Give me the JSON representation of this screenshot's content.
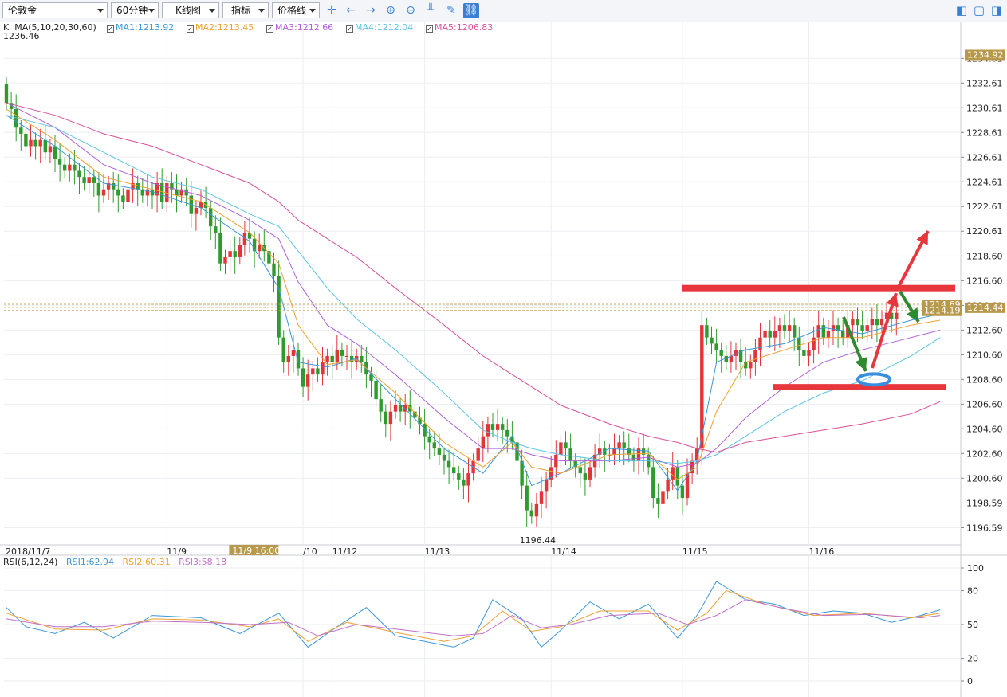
{
  "toolbar": {
    "symbol": "伦敦金",
    "period": "60分钟",
    "chart_type": "K线图",
    "indicator": "指标",
    "price_line": "价格线"
  },
  "main_legend": {
    "label": "K",
    "ma_params": "MA(5,10,20,30,60)",
    "items": [
      {
        "text": "MA1:1213.92",
        "color": "#3c97d8"
      },
      {
        "text": "MA2:1213.45",
        "color": "#f0a030"
      },
      {
        "text": "MA3:1212.66",
        "color": "#b060d8"
      },
      {
        "text": "MA4:1212.04",
        "color": "#5cc4e4"
      },
      {
        "text": "MA5:1206.83",
        "color": "#d8509c"
      }
    ],
    "high_label": "1236.46"
  },
  "rsi_legend": {
    "params": "RSI(6,12,24)",
    "items": [
      {
        "text": "RSI1:62.94",
        "color": "#3c97d8"
      },
      {
        "text": "RSI2:60.31",
        "color": "#f0a030"
      },
      {
        "text": "RSI3:58.18",
        "color": "#c070c8"
      }
    ]
  },
  "chart_data": {
    "type": "candlestick",
    "y_ticks": [
      "1234.61",
      "1232.61",
      "1230.61",
      "1228.61",
      "1226.61",
      "1224.61",
      "1222.61",
      "1220.61",
      "1218.60",
      "1216.60",
      "1214.60",
      "1212.60",
      "1210.60",
      "1208.60",
      "1206.60",
      "1204.60",
      "1202.60",
      "1200.60",
      "1198.59",
      "1196.59"
    ],
    "ylim": [
      1195.2,
      1236.5
    ],
    "x_labels": [
      {
        "text": "2018/11/7",
        "bar": 0
      },
      {
        "text": "11/9",
        "bar": 33
      },
      {
        "text": "/10",
        "bar": 61
      },
      {
        "text": "11/12",
        "bar": 67
      },
      {
        "text": "11/13",
        "bar": 86
      },
      {
        "text": "11/14",
        "bar": 112
      },
      {
        "text": "11/15",
        "bar": 139
      },
      {
        "text": "11/16",
        "bar": 165
      }
    ],
    "cursor_label": {
      "text": "11/9 16:00",
      "bar": 54
    },
    "price_tags": [
      {
        "text": "1234.92",
        "value": 1234.92
      },
      {
        "text": "1214.69",
        "value": 1214.69
      },
      {
        "text": "1214.44",
        "value": 1214.44
      },
      {
        "text": "1214.19",
        "value": 1214.19
      }
    ],
    "low_label": {
      "text": "1196.44",
      "value": 1196.44,
      "bar": 106
    },
    "closes": [
      1231,
      1230.5,
      1229,
      1228.5,
      1227.5,
      1228,
      1227.5,
      1228,
      1227,
      1227.5,
      1226.5,
      1226,
      1225.5,
      1226,
      1225.5,
      1225,
      1224.5,
      1225,
      1224.5,
      1223.5,
      1224,
      1224.5,
      1224,
      1223.5,
      1223,
      1224,
      1224.5,
      1224,
      1223.5,
      1224,
      1223.5,
      1224.5,
      1223,
      1224.5,
      1224,
      1223.5,
      1224,
      1223.5,
      1222,
      1222.5,
      1223,
      1222.5,
      1221,
      1220.5,
      1218,
      1218.5,
      1219,
      1218.5,
      1219.5,
      1220.5,
      1220,
      1219,
      1219.5,
      1219,
      1218,
      1217,
      1212,
      1210,
      1210.5,
      1211,
      1209.5,
      1208,
      1209,
      1209.5,
      1209,
      1210,
      1210.5,
      1210,
      1211,
      1210.5,
      1210.5,
      1210,
      1210.5,
      1210,
      1209,
      1208.5,
      1207,
      1206,
      1205,
      1206,
      1206.5,
      1206,
      1206.5,
      1206,
      1205.5,
      1205,
      1204,
      1203.5,
      1203,
      1202.5,
      1202,
      1201.5,
      1201,
      1200.5,
      1200,
      1201,
      1202,
      1203,
      1204,
      1205,
      1204.5,
      1205,
      1204.5,
      1204,
      1203.5,
      1202,
      1200,
      1198,
      1197.5,
      1198.5,
      1199.5,
      1200.5,
      1201.5,
      1202.5,
      1203.5,
      1203,
      1202,
      1201.5,
      1201,
      1200.5,
      1201.5,
      1202.5,
      1203,
      1202.5,
      1202.5,
      1203,
      1203.5,
      1203,
      1202.5,
      1202,
      1203,
      1202.5,
      1201.5,
      1199,
      1198.5,
      1199.5,
      1200.5,
      1201.5,
      1200,
      1199,
      1201,
      1202,
      1203,
      1213,
      1212,
      1211.5,
      1211,
      1210.5,
      1210,
      1210.5,
      1211,
      1210,
      1209.5,
      1210,
      1211,
      1212,
      1212.5,
      1212,
      1212.5,
      1213,
      1212.5,
      1213,
      1212,
      1211,
      1210.5,
      1211,
      1212,
      1213,
      1212,
      1212.5,
      1213,
      1212.5,
      1212,
      1213,
      1213.5,
      1213,
      1212.5,
      1213,
      1213.5,
      1213,
      1213.5,
      1214,
      1213.5,
      1214
    ],
    "ma": [
      {
        "name": "MA1",
        "color": "#3c97d8",
        "points": [
          [
            0,
            1230
          ],
          [
            10,
            1227.5
          ],
          [
            20,
            1224.5
          ],
          [
            30,
            1223.8
          ],
          [
            40,
            1222.5
          ],
          [
            50,
            1219.8
          ],
          [
            56,
            1216
          ],
          [
            60,
            1210
          ],
          [
            66,
            1209.6
          ],
          [
            72,
            1210.3
          ],
          [
            80,
            1207
          ],
          [
            90,
            1203
          ],
          [
            98,
            1201
          ],
          [
            104,
            1204
          ],
          [
            108,
            1200
          ],
          [
            114,
            1201
          ],
          [
            124,
            1203
          ],
          [
            132,
            1202.8
          ],
          [
            138,
            1199.6
          ],
          [
            142,
            1202
          ],
          [
            146,
            1210
          ],
          [
            152,
            1211
          ],
          [
            160,
            1211.5
          ],
          [
            168,
            1212.8
          ],
          [
            176,
            1212.3
          ],
          [
            186,
            1213.4
          ],
          [
            192,
            1213.9
          ]
        ]
      },
      {
        "name": "MA2",
        "color": "#f0a030",
        "points": [
          [
            0,
            1230.5
          ],
          [
            10,
            1228
          ],
          [
            20,
            1225
          ],
          [
            30,
            1224
          ],
          [
            40,
            1223
          ],
          [
            50,
            1220.5
          ],
          [
            56,
            1218
          ],
          [
            60,
            1213
          ],
          [
            66,
            1209.8
          ],
          [
            72,
            1210.2
          ],
          [
            80,
            1207.5
          ],
          [
            90,
            1203.5
          ],
          [
            98,
            1201.5
          ],
          [
            104,
            1203.5
          ],
          [
            108,
            1201.5
          ],
          [
            114,
            1201
          ],
          [
            124,
            1202.5
          ],
          [
            132,
            1202.6
          ],
          [
            138,
            1200.5
          ],
          [
            142,
            1201.5
          ],
          [
            146,
            1206
          ],
          [
            152,
            1210
          ],
          [
            160,
            1211
          ],
          [
            168,
            1212
          ],
          [
            176,
            1212
          ],
          [
            186,
            1213
          ],
          [
            192,
            1213.4
          ]
        ]
      },
      {
        "name": "MA3",
        "color": "#b060d8",
        "points": [
          [
            0,
            1231
          ],
          [
            10,
            1229
          ],
          [
            20,
            1226
          ],
          [
            30,
            1224.5
          ],
          [
            40,
            1223.5
          ],
          [
            50,
            1221.5
          ],
          [
            56,
            1220
          ],
          [
            60,
            1216.5
          ],
          [
            66,
            1213
          ],
          [
            72,
            1211.5
          ],
          [
            80,
            1209
          ],
          [
            90,
            1205.5
          ],
          [
            98,
            1203
          ],
          [
            104,
            1203
          ],
          [
            108,
            1202.5
          ],
          [
            114,
            1202
          ],
          [
            124,
            1202
          ],
          [
            132,
            1202.3
          ],
          [
            138,
            1201.5
          ],
          [
            142,
            1201.8
          ],
          [
            146,
            1203
          ],
          [
            152,
            1205.5
          ],
          [
            160,
            1208
          ],
          [
            168,
            1210
          ],
          [
            176,
            1211
          ],
          [
            186,
            1212
          ],
          [
            192,
            1212.6
          ]
        ]
      },
      {
        "name": "MA4",
        "color": "#5cc4e4",
        "points": [
          [
            0,
            1230
          ],
          [
            10,
            1229
          ],
          [
            20,
            1227
          ],
          [
            30,
            1225
          ],
          [
            40,
            1224
          ],
          [
            50,
            1222
          ],
          [
            56,
            1221
          ],
          [
            60,
            1219
          ],
          [
            66,
            1216
          ],
          [
            72,
            1213.5
          ],
          [
            80,
            1211
          ],
          [
            90,
            1207.5
          ],
          [
            98,
            1204.5
          ],
          [
            104,
            1203.5
          ],
          [
            108,
            1203
          ],
          [
            114,
            1202.5
          ],
          [
            124,
            1202
          ],
          [
            132,
            1202
          ],
          [
            138,
            1201.8
          ],
          [
            142,
            1202
          ],
          [
            146,
            1202.5
          ],
          [
            152,
            1204
          ],
          [
            160,
            1206
          ],
          [
            168,
            1207.5
          ],
          [
            176,
            1208.5
          ],
          [
            186,
            1210.5
          ],
          [
            192,
            1212
          ]
        ]
      },
      {
        "name": "MA5",
        "color": "#d8509c",
        "points": [
          [
            0,
            1231
          ],
          [
            10,
            1230
          ],
          [
            20,
            1228.5
          ],
          [
            30,
            1227.5
          ],
          [
            40,
            1226
          ],
          [
            50,
            1224.5
          ],
          [
            56,
            1223
          ],
          [
            60,
            1221.5
          ],
          [
            66,
            1220
          ],
          [
            72,
            1218.5
          ],
          [
            80,
            1216
          ],
          [
            90,
            1213
          ],
          [
            98,
            1210.5
          ],
          [
            104,
            1209
          ],
          [
            108,
            1208
          ],
          [
            114,
            1206.5
          ],
          [
            124,
            1205
          ],
          [
            132,
            1204
          ],
          [
            138,
            1203.5
          ],
          [
            142,
            1203
          ],
          [
            146,
            1202.7
          ],
          [
            152,
            1203.5
          ],
          [
            160,
            1204
          ],
          [
            168,
            1204.5
          ],
          [
            176,
            1205
          ],
          [
            186,
            1205.8
          ],
          [
            192,
            1206.8
          ]
        ]
      }
    ],
    "annotations": {
      "resistance": 1216.0,
      "support": 1208.0
    },
    "rsi_ticks": [
      "100",
      "80",
      "50",
      "20",
      "0"
    ],
    "rsi_series": [
      {
        "name": "RSI1",
        "color": "#3c97d8",
        "points": [
          [
            0,
            65
          ],
          [
            4,
            48
          ],
          [
            10,
            42
          ],
          [
            16,
            52
          ],
          [
            22,
            38
          ],
          [
            30,
            58
          ],
          [
            40,
            56
          ],
          [
            48,
            42
          ],
          [
            56,
            60
          ],
          [
            62,
            30
          ],
          [
            68,
            48
          ],
          [
            74,
            65
          ],
          [
            80,
            40
          ],
          [
            86,
            35
          ],
          [
            92,
            30
          ],
          [
            96,
            38
          ],
          [
            100,
            72
          ],
          [
            106,
            55
          ],
          [
            110,
            30
          ],
          [
            114,
            45
          ],
          [
            120,
            70
          ],
          [
            126,
            55
          ],
          [
            132,
            68
          ],
          [
            138,
            38
          ],
          [
            142,
            58
          ],
          [
            146,
            88
          ],
          [
            152,
            72
          ],
          [
            158,
            68
          ],
          [
            164,
            58
          ],
          [
            170,
            62
          ],
          [
            176,
            60
          ],
          [
            182,
            52
          ],
          [
            188,
            58
          ],
          [
            192,
            63
          ]
        ]
      },
      {
        "name": "RSI2",
        "color": "#f0a030",
        "points": [
          [
            0,
            60
          ],
          [
            10,
            46
          ],
          [
            20,
            45
          ],
          [
            30,
            55
          ],
          [
            40,
            54
          ],
          [
            50,
            48
          ],
          [
            56,
            55
          ],
          [
            62,
            35
          ],
          [
            70,
            52
          ],
          [
            80,
            43
          ],
          [
            90,
            35
          ],
          [
            96,
            40
          ],
          [
            102,
            62
          ],
          [
            108,
            44
          ],
          [
            114,
            48
          ],
          [
            122,
            62
          ],
          [
            132,
            62
          ],
          [
            138,
            45
          ],
          [
            144,
            60
          ],
          [
            148,
            80
          ],
          [
            156,
            68
          ],
          [
            166,
            58
          ],
          [
            176,
            60
          ],
          [
            186,
            56
          ],
          [
            192,
            60
          ]
        ]
      },
      {
        "name": "RSI3",
        "color": "#c070c8",
        "points": [
          [
            0,
            55
          ],
          [
            10,
            48
          ],
          [
            20,
            48
          ],
          [
            30,
            53
          ],
          [
            40,
            52
          ],
          [
            50,
            50
          ],
          [
            58,
            52
          ],
          [
            64,
            40
          ],
          [
            72,
            50
          ],
          [
            82,
            45
          ],
          [
            92,
            40
          ],
          [
            98,
            42
          ],
          [
            104,
            58
          ],
          [
            110,
            47
          ],
          [
            116,
            50
          ],
          [
            124,
            58
          ],
          [
            134,
            60
          ],
          [
            140,
            50
          ],
          [
            146,
            58
          ],
          [
            152,
            72
          ],
          [
            160,
            64
          ],
          [
            168,
            58
          ],
          [
            178,
            59
          ],
          [
            188,
            56
          ],
          [
            192,
            58
          ]
        ]
      }
    ]
  }
}
